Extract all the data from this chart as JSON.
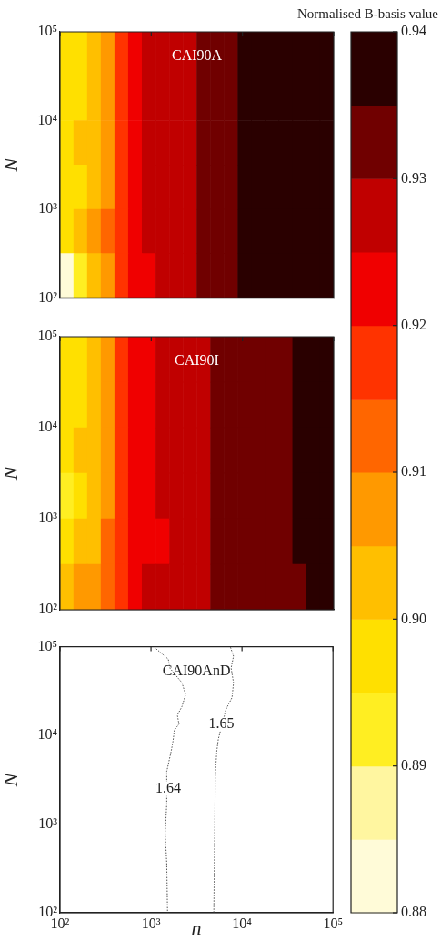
{
  "chart_data": [
    {
      "type": "heatmap",
      "title": "CAI90A",
      "ylabel": "N",
      "log": "xy",
      "xlim": [
        100,
        100000
      ],
      "ylim": [
        100,
        100000
      ],
      "tick_labels": "y",
      "xticks": [
        {
          "value": 100,
          "label": null
        },
        {
          "value": 1000,
          "label": null
        },
        {
          "value": 10000,
          "label": null
        },
        {
          "value": 100000,
          "label": null
        }
      ],
      "yticks": [
        {
          "value": 100,
          "label": "10²"
        },
        {
          "value": 1000,
          "label": "10³"
        },
        {
          "value": 10000,
          "label": "10⁴"
        },
        {
          "value": 100000,
          "label": "10⁵"
        }
      ],
      "x": [
        119,
        168,
        237,
        335,
        473,
        668,
        944,
        1334,
        1884,
        2661,
        3758,
        5309,
        7499,
        10593,
        14962,
        21135,
        29854,
        42170,
        59566,
        84140
      ],
      "y": [
        56234,
        17783,
        5623,
        1778,
        562,
        178
      ],
      "cells": [
        [
          0.8975,
          0.8975,
          0.9025,
          0.9075,
          0.9175,
          0.9225,
          0.9275,
          0.9275,
          0.9275,
          0.9275,
          0.9325,
          0.9325,
          0.9325,
          0.9375,
          0.9375,
          0.9375,
          0.9375,
          0.9375,
          0.9375,
          0.9375
        ],
        [
          0.8975,
          0.8975,
          0.9025,
          0.9075,
          0.9175,
          0.9225,
          0.9275,
          0.9275,
          0.9275,
          0.9275,
          0.9325,
          0.9325,
          0.9325,
          0.9375,
          0.9375,
          0.9375,
          0.9375,
          0.9375,
          0.9375,
          0.9375
        ],
        [
          0.8975,
          0.9025,
          0.9025,
          0.9075,
          0.9175,
          0.9225,
          0.9275,
          0.9275,
          0.9275,
          0.9275,
          0.9325,
          0.9325,
          0.9325,
          0.9375,
          0.9375,
          0.9375,
          0.9375,
          0.9375,
          0.9375,
          0.9375
        ],
        [
          0.8975,
          0.8975,
          0.9025,
          0.9075,
          0.9175,
          0.9225,
          0.9275,
          0.9275,
          0.9275,
          0.9275,
          0.9325,
          0.9325,
          0.9325,
          0.9375,
          0.9375,
          0.9375,
          0.9375,
          0.9375,
          0.9375,
          0.9375
        ],
        [
          0.8975,
          0.9025,
          0.9075,
          0.9125,
          0.9175,
          0.9225,
          0.9275,
          0.9275,
          0.9275,
          0.9275,
          0.9325,
          0.9325,
          0.9325,
          0.9375,
          0.9375,
          0.9375,
          0.9375,
          0.9375,
          0.9375,
          0.9375
        ],
        [
          0.8825,
          0.8925,
          0.9025,
          0.9075,
          0.9175,
          0.9225,
          0.9225,
          0.9275,
          0.9275,
          0.9275,
          0.9325,
          0.9325,
          0.9325,
          0.9375,
          0.9375,
          0.9375,
          0.9375,
          0.9375,
          0.9375,
          0.9375
        ]
      ],
      "clim": [
        0.88,
        0.94
      ],
      "clabel": "Normalised B-basis value",
      "colors": [
        "#fffbd8",
        "#fff6a0",
        "#ffee22",
        "#ffe000",
        "#ffbf00",
        "#ff9900",
        "#ff6600",
        "#ff3300",
        "#f00000",
        "#c00000",
        "#700000",
        "#2a0000"
      ],
      "cticks": [
        {
          "value": 0.93,
          "label": "0.93"
        },
        {
          "value": 0.94,
          "label": "0.94"
        }
      ]
    },
    {
      "type": "heatmap",
      "title": "CAI90I",
      "ylabel": "N",
      "log": "xy",
      "xlim": [
        100,
        100000
      ],
      "ylim": [
        100,
        100000
      ],
      "tick_labels": "y",
      "xticks": [
        {
          "value": 100,
          "label": null
        },
        {
          "value": 1000,
          "label": null
        },
        {
          "value": 10000,
          "label": null
        },
        {
          "value": 100000,
          "label": null
        }
      ],
      "yticks": [
        {
          "value": 100,
          "label": "10²"
        },
        {
          "value": 1000,
          "label": "10³"
        },
        {
          "value": 10000,
          "label": "10⁴"
        },
        {
          "value": 100000,
          "label": "10⁵"
        }
      ],
      "x": [
        119,
        168,
        237,
        335,
        473,
        668,
        944,
        1334,
        1884,
        2661,
        3758,
        5309,
        7499,
        10593,
        14962,
        21135,
        29854,
        42170,
        59566,
        84140
      ],
      "y": [
        56234,
        17783,
        5623,
        1778,
        562,
        178
      ],
      "cells": [
        [
          0.8975,
          0.8975,
          0.9025,
          0.9075,
          0.9175,
          0.9225,
          0.9225,
          0.9275,
          0.9275,
          0.9275,
          0.9275,
          0.9325,
          0.9325,
          0.9325,
          0.9325,
          0.9325,
          0.9325,
          0.9375,
          0.9375,
          0.9375
        ],
        [
          0.8975,
          0.8975,
          0.9025,
          0.9075,
          0.9175,
          0.9225,
          0.9225,
          0.9275,
          0.9275,
          0.9275,
          0.9275,
          0.9325,
          0.9325,
          0.9325,
          0.9325,
          0.9325,
          0.9325,
          0.9375,
          0.9375,
          0.9375
        ],
        [
          0.8975,
          0.9025,
          0.9025,
          0.9075,
          0.9175,
          0.9225,
          0.9225,
          0.9275,
          0.9275,
          0.9275,
          0.9275,
          0.9325,
          0.9325,
          0.9325,
          0.9325,
          0.9325,
          0.9325,
          0.9375,
          0.9375,
          0.9375
        ],
        [
          0.8925,
          0.8975,
          0.9025,
          0.9075,
          0.9175,
          0.9225,
          0.9225,
          0.9275,
          0.9275,
          0.9275,
          0.9275,
          0.9325,
          0.9325,
          0.9325,
          0.9325,
          0.9325,
          0.9325,
          0.9375,
          0.9375,
          0.9375
        ],
        [
          0.8975,
          0.9025,
          0.9025,
          0.9125,
          0.9175,
          0.9225,
          0.9225,
          0.9225,
          0.9275,
          0.9275,
          0.9275,
          0.9325,
          0.9325,
          0.9325,
          0.9325,
          0.9325,
          0.9325,
          0.9375,
          0.9375,
          0.9375
        ],
        [
          0.9025,
          0.9075,
          0.9075,
          0.9125,
          0.9175,
          0.9225,
          0.9275,
          0.9275,
          0.9275,
          0.9275,
          0.9275,
          0.9325,
          0.9325,
          0.9325,
          0.9325,
          0.9325,
          0.9325,
          0.9325,
          0.9375,
          0.9375
        ]
      ],
      "clim": [
        0.88,
        0.94
      ],
      "colors": [
        "#fffbd8",
        "#fff6a0",
        "#ffee22",
        "#ffe000",
        "#ffbf00",
        "#ff9900",
        "#ff6600",
        "#ff3300",
        "#f00000",
        "#c00000",
        "#700000",
        "#2a0000"
      ],
      "cticks": [
        {
          "value": 0.88,
          "label": "0.88"
        },
        {
          "value": 0.89,
          "label": "0.89"
        },
        {
          "value": 0.9,
          "label": "0.90"
        },
        {
          "value": 0.91,
          "label": "0.91"
        },
        {
          "value": 0.92,
          "label": "0.92"
        }
      ]
    },
    {
      "type": "line",
      "title": "CAI90AnD",
      "xlabel": "n",
      "ylabel": "N",
      "log": "xy",
      "xlim": [
        100,
        100000
      ],
      "ylim": [
        100,
        100000
      ],
      "line_style": "dotted",
      "marker": "none",
      "xticks": [
        {
          "value": 100,
          "label": "10²"
        },
        {
          "value": 1000,
          "label": "10³"
        },
        {
          "value": 10000,
          "label": "10⁴"
        },
        {
          "value": 100000,
          "label": "10⁵"
        }
      ],
      "yticks": [
        {
          "value": 100,
          "label": "10²"
        },
        {
          "value": 1000,
          "label": "10³"
        },
        {
          "value": 10000,
          "label": "10⁴"
        },
        {
          "value": 100000,
          "label": "10⁵"
        }
      ],
      "series": [
        {
          "color": "#555555",
          "x": [
            1140,
            1550,
            1610,
            2190,
            2400,
            2190,
            1950,
            2030,
            1810,
            1740,
            1670,
            1490,
            1490,
            1430,
            1490,
            1520
          ],
          "values": [
            94800,
            72400,
            57500,
            39200,
            28800,
            21200,
            16900,
            13400,
            11500,
            8450,
            6710,
            3920,
            1690,
            782,
            363,
            100
          ]
        },
        {
          "color": "#555555",
          "x": [
            7470,
            8070,
            7590,
            8070,
            7770,
            6660,
            5500,
            5290,
            5090,
            5010,
            4900
          ],
          "values": [
            98500,
            78200,
            57500,
            39200,
            26700,
            19600,
            9120,
            6710,
            3630,
            782,
            100
          ]
        }
      ],
      "annotations": [
        {
          "text": "1.64",
          "x": 1550,
          "y": 2500
        },
        {
          "text": "1.65",
          "x": 5930,
          "y": 13400
        }
      ]
    }
  ]
}
